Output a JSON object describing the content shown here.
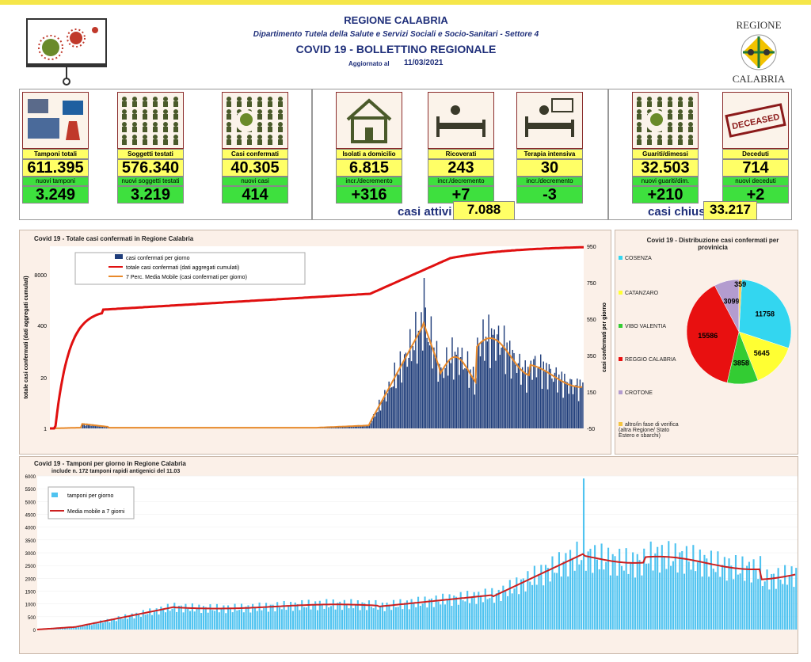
{
  "header": {
    "title": "REGIONE CALABRIA",
    "subtitle": "Dipartimento Tutela della Salute e Servizi Sociali e Socio-Sanitari - Settore 4",
    "bulletin": "COVID 19 - BOLLETTINO REGIONALE",
    "updated_label": "Aggiornato al",
    "updated_date": "11/03/2021",
    "logo_top": "REGIONE",
    "logo_bottom": "CALABRIA"
  },
  "cards": [
    {
      "label": "Tamponi totali",
      "value": "611.395",
      "new_label": "nuovi tamponi",
      "new_value": "3.249",
      "icon": "lab-icon"
    },
    {
      "label": "Soggetti testati",
      "value": "576.340",
      "new_label": "nuovi soggetti testati",
      "new_value": "3.219",
      "icon": "people-icon"
    },
    {
      "label": "Casi confermati",
      "value": "40.305",
      "new_label": "nuovi casi",
      "new_value": "414",
      "icon": "virus-people-icon"
    },
    {
      "label": "Isolati a domicilio",
      "value": "6.815",
      "new_label": "incr./decremento",
      "new_value": "+316",
      "icon": "house-icon"
    },
    {
      "label": "Ricoverati",
      "value": "243",
      "new_label": "incr./decremento",
      "new_value": "+7",
      "icon": "hospital-bed-icon"
    },
    {
      "label": "Terapia intensiva",
      "value": "30",
      "new_label": "incr./decremento",
      "new_value": "-3",
      "icon": "icu-bed-icon"
    },
    {
      "label": "Guariti/dimessi",
      "value": "32.503",
      "new_label": "nuovi guariti/dim.",
      "new_value": "+210",
      "icon": "recovered-icon"
    },
    {
      "label": "Deceduti",
      "value": "714",
      "new_label": "nuovi deceduti",
      "new_value": "+2",
      "icon": "deceased-stamp-icon"
    }
  ],
  "summary": {
    "active_label": "casi attivi",
    "active_value": "7.088",
    "closed_label": "casi chiusi",
    "closed_value": "33.217",
    "stamp_text": "DECEASED"
  },
  "chart_data": [
    {
      "type": "bar",
      "title": "Covid 19 - Totale casi confermati in Regione Calabria",
      "ylabel": "totale casi confermati (dati aggregati cumulati)",
      "y2label": "casi confermati per giorno",
      "left_ticks": [
        "8000",
        "400",
        "20",
        "1"
      ],
      "right_ticks": [
        "950",
        "750",
        "550",
        "350",
        "150",
        "-50"
      ],
      "series": [
        {
          "name": "casi confermati per giorno",
          "color": "#1f3d7a"
        },
        {
          "name": "totale casi confermati (dati aggregati cumulati)",
          "color": "#e01010"
        },
        {
          "name": "7 Perc. Media Mobile (casi confermati per giorno)",
          "color": "#e8892a"
        }
      ]
    },
    {
      "type": "pie",
      "title": "Covid 19 - Distribuzione casi confermati per provinicia",
      "categories": [
        "COSENZA",
        "CATANZARO",
        "VIBO VALENTIA",
        "REGGIO CALABRIA",
        "CROTONE",
        "altro/in fase di verifica (altra Regione/ Stato Estero e sbarchi)"
      ],
      "values": [
        11758,
        5645,
        3858,
        15586,
        3099,
        359
      ],
      "colors": [
        "#33d6f0",
        "#ffff33",
        "#33cc33",
        "#e81010",
        "#b39ccf",
        "#f5c542"
      ],
      "labels": [
        "11758",
        "5645",
        "3858",
        "15586",
        "3099",
        "359"
      ]
    },
    {
      "type": "bar",
      "title": "Covid 19 - Tamponi per giorno in Regione Calabria",
      "note": "include n. 172 tamponi rapidi antigenici del  11.03",
      "ylim": [
        0,
        6000
      ],
      "yticks": [
        0,
        500,
        1000,
        1500,
        2000,
        2500,
        3000,
        3500,
        4000,
        4500,
        5000,
        5500,
        6000
      ],
      "series": [
        {
          "name": "tamponi per giorno",
          "color": "#4fc3f0"
        },
        {
          "name": "Media mobile a 7 giorni",
          "color": "#cc1f1f"
        }
      ]
    }
  ]
}
